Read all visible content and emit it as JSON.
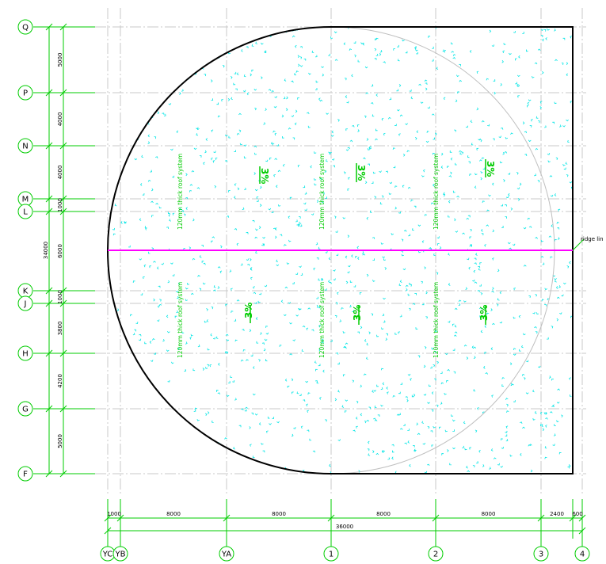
{
  "grid_rows": [
    {
      "label": "Q"
    },
    {
      "label": "P"
    },
    {
      "label": "N"
    },
    {
      "label": "M"
    },
    {
      "label": "L"
    },
    {
      "label": "K"
    },
    {
      "label": "J"
    },
    {
      "label": "H"
    },
    {
      "label": "G"
    },
    {
      "label": "F"
    }
  ],
  "grid_cols": [
    {
      "label": "YC"
    },
    {
      "label": "YB"
    },
    {
      "label": "YA"
    },
    {
      "label": "1"
    },
    {
      "label": "2"
    },
    {
      "label": "3"
    },
    {
      "label": "4"
    }
  ],
  "vertical_dims": [
    "5000",
    "4000",
    "4000",
    "1000",
    "6000",
    "1000",
    "3800",
    "4200",
    "5000"
  ],
  "vertical_total": "34000",
  "horizontal_dims": [
    "1000",
    "8000",
    "8000",
    "8000",
    "8000",
    "2400",
    "600"
  ],
  "horizontal_total": "36000",
  "roof_note": "120mm thick roof system",
  "slope_label": "3%",
  "ridge_label": "ridge lin",
  "colors": {
    "grid_green": "#00cc00",
    "ridge_magenta": "#ff00ff",
    "hatch_cyan": "#00e5e5",
    "outline": "#000000",
    "grid_gray": "#c8c8c8"
  }
}
